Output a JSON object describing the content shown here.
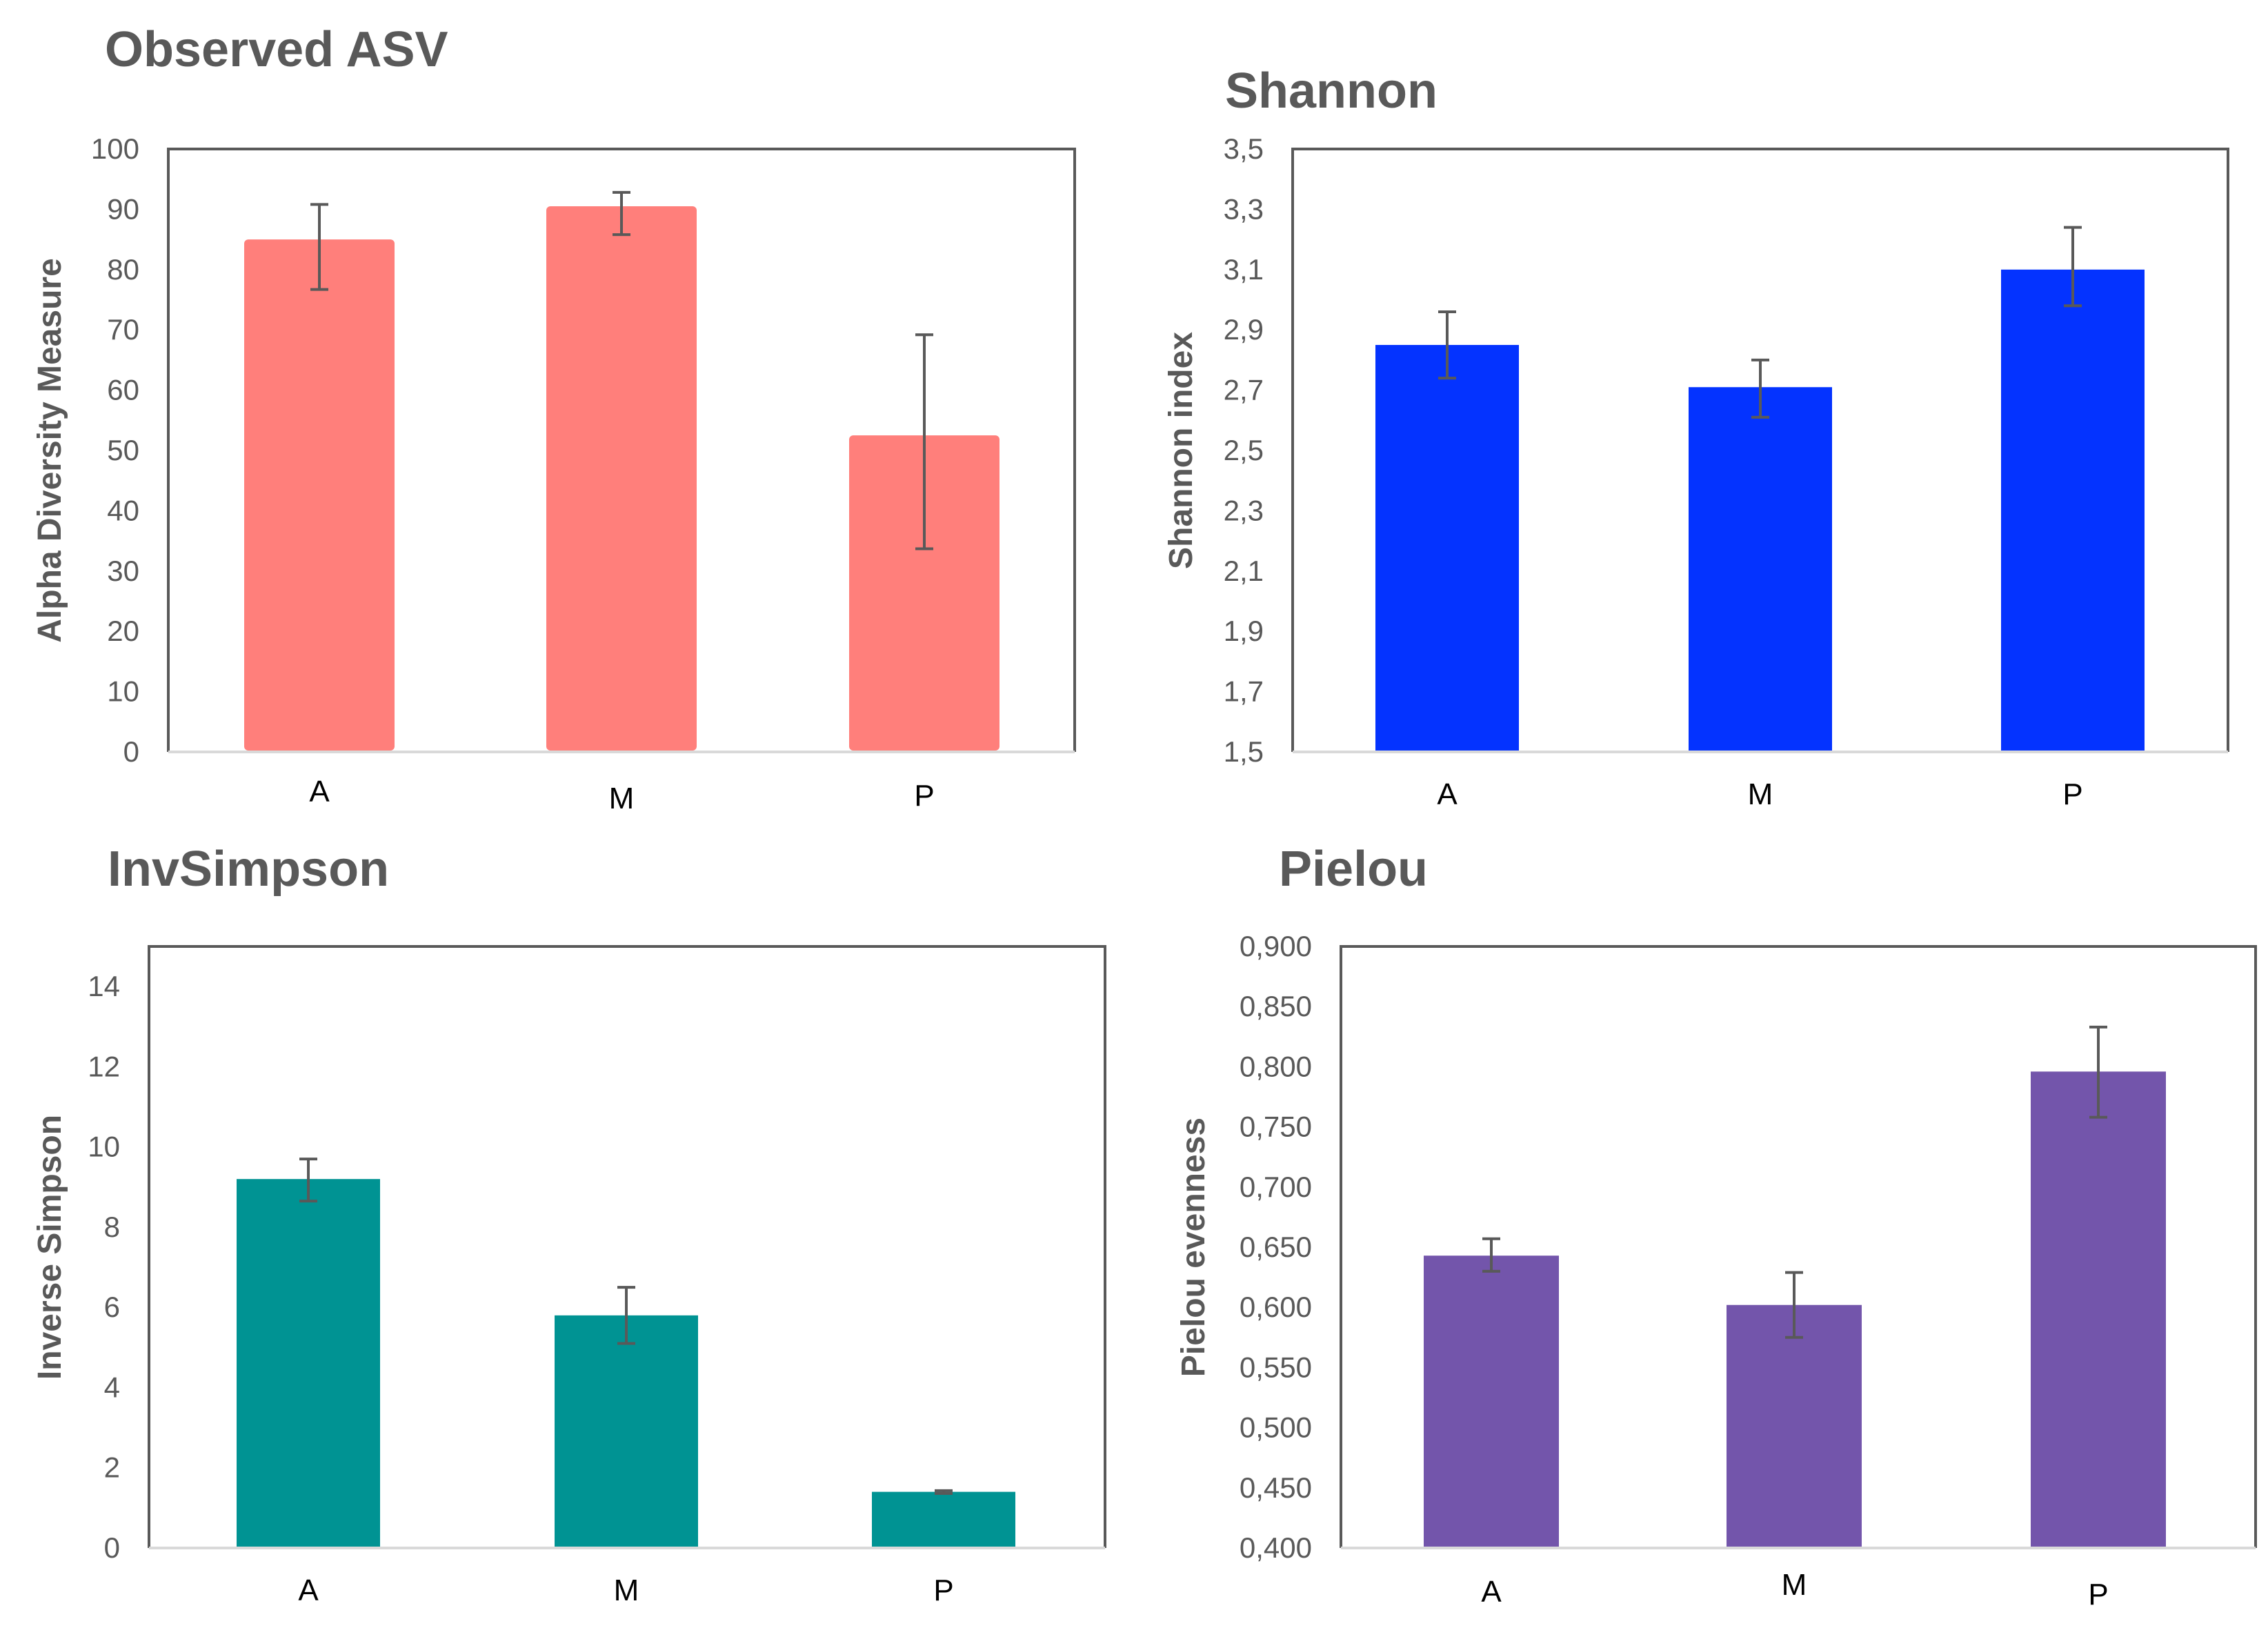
{
  "chart_data": [
    {
      "type": "bar",
      "title": "Observed ASV",
      "xlabel": "",
      "ylabel": "Alpha Diversity Measure",
      "categories": [
        "A",
        "M",
        "P"
      ],
      "values": [
        85,
        90.5,
        52.5
      ],
      "error_low": [
        76.7,
        85.8,
        33.7
      ],
      "error_high": [
        90.8,
        92.8,
        69.2
      ],
      "ylim": [
        0,
        100
      ],
      "yticks": [
        "0",
        "10",
        "20",
        "30",
        "40",
        "50",
        "60",
        "70",
        "80",
        "90",
        "100"
      ],
      "color": "#FF7F7B",
      "grid": false,
      "legend": "none"
    },
    {
      "type": "bar",
      "title": "Shannon",
      "xlabel": "",
      "ylabel": "Shannon index",
      "categories": [
        "A",
        "M",
        "P"
      ],
      "values": [
        2.85,
        2.71,
        3.1
      ],
      "error_low": [
        2.74,
        2.61,
        2.98
      ],
      "error_high": [
        2.96,
        2.8,
        3.24
      ],
      "ylim": [
        1.5,
        3.5
      ],
      "yticks": [
        "1,5",
        "1,7",
        "1,9",
        "2,1",
        "2,3",
        "2,5",
        "2,7",
        "2,9",
        "3,1",
        "3,3",
        "3,5"
      ],
      "color": "#0433FF",
      "grid": false,
      "legend": "none"
    },
    {
      "type": "bar",
      "title": "InvSimpson",
      "xlabel": "",
      "ylabel": "Inverse Simpson",
      "categories": [
        "A",
        "M",
        "P"
      ],
      "values": [
        9.2,
        5.8,
        1.4
      ],
      "error_low": [
        8.65,
        5.1,
        1.36
      ],
      "error_high": [
        9.7,
        6.5,
        1.43
      ],
      "ylim": [
        0,
        15
      ],
      "yticks": [
        "0",
        "2",
        "4",
        "6",
        "8",
        "10",
        "12",
        "14"
      ],
      "color": "#009393",
      "grid": false,
      "legend": "none"
    },
    {
      "type": "bar",
      "title": "Pielou",
      "xlabel": "",
      "ylabel": "Pielou evenness",
      "categories": [
        "A",
        "M",
        "P"
      ],
      "values": [
        0.643,
        0.602,
        0.796
      ],
      "error_low": [
        0.63,
        0.575,
        0.758
      ],
      "error_high": [
        0.657,
        0.629,
        0.833
      ],
      "ylim": [
        0.4,
        0.9
      ],
      "yticks": [
        "0,400",
        "0,450",
        "0,500",
        "0,550",
        "0,600",
        "0,650",
        "0,700",
        "0,750",
        "0,800",
        "0,850",
        "0,900"
      ],
      "color": "#7355AB",
      "grid": false,
      "legend": "none"
    }
  ]
}
